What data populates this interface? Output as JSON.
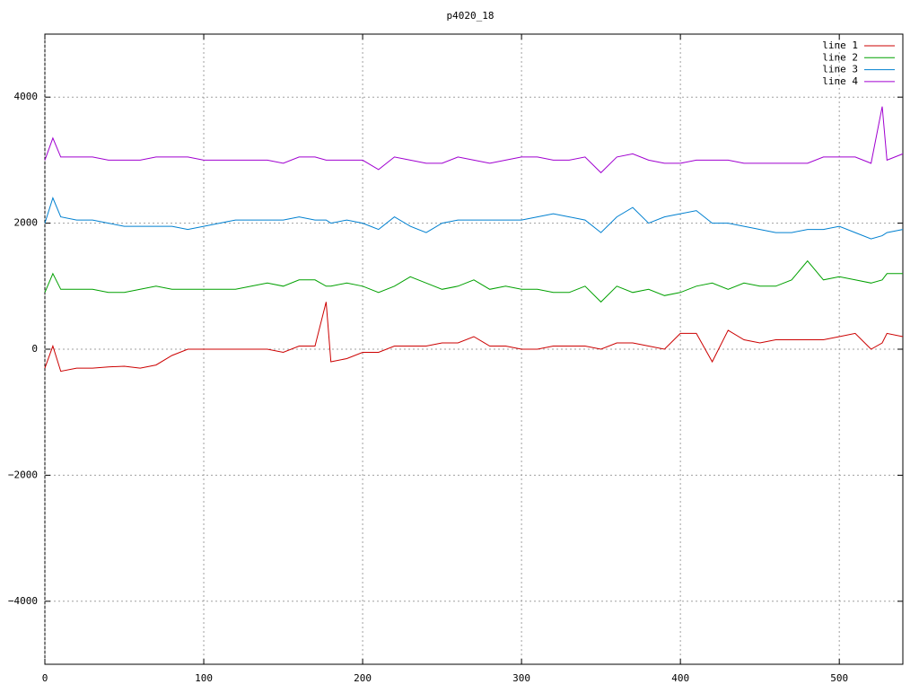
{
  "chart_data": {
    "type": "line",
    "title": "p4020_18",
    "x": [
      0,
      5,
      10,
      20,
      30,
      40,
      50,
      60,
      70,
      80,
      90,
      100,
      110,
      120,
      130,
      140,
      150,
      160,
      170,
      177,
      180,
      190,
      200,
      210,
      220,
      230,
      240,
      250,
      260,
      270,
      280,
      290,
      300,
      310,
      320,
      330,
      340,
      350,
      360,
      370,
      380,
      390,
      400,
      410,
      420,
      430,
      440,
      450,
      460,
      470,
      480,
      490,
      500,
      510,
      520,
      527,
      530,
      540
    ],
    "series": [
      {
        "name": "line 1",
        "color": "#cc0000",
        "values": [
          -300,
          50,
          -350,
          -300,
          -300,
          -280,
          -270,
          -300,
          -250,
          -100,
          0,
          0,
          0,
          0,
          0,
          0,
          -50,
          50,
          50,
          750,
          -200,
          -150,
          -50,
          -50,
          50,
          50,
          50,
          100,
          100,
          200,
          50,
          50,
          0,
          0,
          50,
          50,
          50,
          0,
          100,
          100,
          50,
          0,
          250,
          250,
          -200,
          300,
          150,
          100,
          150,
          150,
          150,
          150,
          200,
          250,
          0,
          100,
          250,
          200
        ]
      },
      {
        "name": "line 2",
        "color": "#00a000",
        "values": [
          900,
          1200,
          950,
          950,
          950,
          900,
          900,
          950,
          1000,
          950,
          950,
          950,
          950,
          950,
          1000,
          1050,
          1000,
          1100,
          1100,
          1000,
          1000,
          1050,
          1000,
          900,
          1000,
          1150,
          1050,
          950,
          1000,
          1100,
          950,
          1000,
          950,
          950,
          900,
          900,
          1000,
          750,
          1000,
          900,
          950,
          850,
          900,
          1000,
          1050,
          950,
          1050,
          1000,
          1000,
          1100,
          1400,
          1100,
          1150,
          1100,
          1050,
          1100,
          1200,
          1200
        ]
      },
      {
        "name": "line 3",
        "color": "#0080d0",
        "values": [
          2000,
          2400,
          2100,
          2050,
          2050,
          2000,
          1950,
          1950,
          1950,
          1950,
          1900,
          1950,
          2000,
          2050,
          2050,
          2050,
          2050,
          2100,
          2050,
          2050,
          2000,
          2050,
          2000,
          1900,
          2100,
          1950,
          1850,
          2000,
          2050,
          2050,
          2050,
          2050,
          2050,
          2100,
          2150,
          2100,
          2050,
          1850,
          2100,
          2250,
          2000,
          2100,
          2150,
          2200,
          2000,
          2000,
          1950,
          1900,
          1850,
          1850,
          1900,
          1900,
          1950,
          1850,
          1750,
          1800,
          1850,
          1900
        ]
      },
      {
        "name": "line 4",
        "color": "#a000d0",
        "values": [
          3000,
          3350,
          3050,
          3050,
          3050,
          3000,
          3000,
          3000,
          3050,
          3050,
          3050,
          3000,
          3000,
          3000,
          3000,
          3000,
          2950,
          3050,
          3050,
          3000,
          3000,
          3000,
          3000,
          2850,
          3050,
          3000,
          2950,
          2950,
          3050,
          3000,
          2950,
          3000,
          3050,
          3050,
          3000,
          3000,
          3050,
          2800,
          3050,
          3100,
          3000,
          2950,
          2950,
          3000,
          3000,
          3000,
          2950,
          2950,
          2950,
          2950,
          2950,
          3050,
          3050,
          3050,
          2950,
          3850,
          3000,
          3100
        ]
      }
    ],
    "xlim": [
      0,
      540
    ],
    "ylim": [
      -5000,
      5000
    ],
    "xticks": [
      0,
      100,
      200,
      300,
      400,
      500
    ],
    "yticks": [
      {
        "value": -4000,
        "label": "−4000"
      },
      {
        "value": -2000,
        "label": "−2000"
      },
      0,
      2000,
      4000
    ],
    "grid": true,
    "legend": "top-right"
  }
}
